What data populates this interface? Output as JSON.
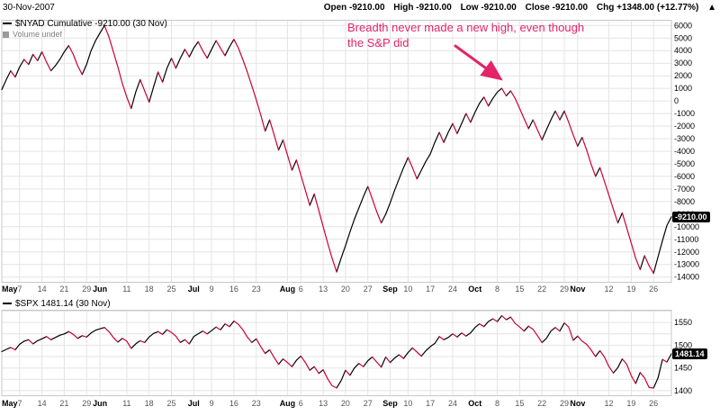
{
  "header": {
    "date": "30-Nov-2007",
    "fields": [
      {
        "label": "Open",
        "value": "-9210.00"
      },
      {
        "label": "High",
        "value": "-9210.00"
      },
      {
        "label": "Low",
        "value": "-9210.00"
      },
      {
        "label": "Close",
        "value": "-9210.00"
      },
      {
        "label": "Chg",
        "value": "+1348.00 (+12.77%)"
      }
    ],
    "direction_icon": "▲"
  },
  "annotation": {
    "line1": "Breadth never made a new high, even though",
    "line2": "the S&P did",
    "color": "#e32468"
  },
  "x_ticks": [
    {
      "i": 0,
      "t": "May",
      "m": true
    },
    {
      "i": 4,
      "t": "7"
    },
    {
      "i": 9,
      "t": "14"
    },
    {
      "i": 14,
      "t": "21"
    },
    {
      "i": 19,
      "t": "29"
    },
    {
      "i": 22,
      "t": "Jun",
      "m": true
    },
    {
      "i": 28,
      "t": "11"
    },
    {
      "i": 33,
      "t": "18"
    },
    {
      "i": 38,
      "t": "25"
    },
    {
      "i": 43,
      "t": "Jul",
      "m": true
    },
    {
      "i": 47,
      "t": "9"
    },
    {
      "i": 52,
      "t": "16"
    },
    {
      "i": 57,
      "t": "23"
    },
    {
      "i": 64,
      "t": "Aug",
      "m": true
    },
    {
      "i": 67,
      "t": "6"
    },
    {
      "i": 72,
      "t": "13"
    },
    {
      "i": 77,
      "t": "20"
    },
    {
      "i": 82,
      "t": "27"
    },
    {
      "i": 87,
      "t": "Sep",
      "m": true
    },
    {
      "i": 91,
      "t": "10"
    },
    {
      "i": 96,
      "t": "17"
    },
    {
      "i": 101,
      "t": "24"
    },
    {
      "i": 106,
      "t": "Oct",
      "m": true
    },
    {
      "i": 111,
      "t": "8"
    },
    {
      "i": 116,
      "t": "15"
    },
    {
      "i": 121,
      "t": "22"
    },
    {
      "i": 126,
      "t": "29"
    },
    {
      "i": 129,
      "t": "Nov",
      "m": true
    },
    {
      "i": 136,
      "t": "12"
    },
    {
      "i": 141,
      "t": "19"
    },
    {
      "i": 146,
      "t": "26"
    }
  ],
  "chart_data": [
    {
      "type": "line",
      "name": "$NYAD Cumulative",
      "legend": "$NYAD Cumulative -9210.00 (30 Nov)",
      "volume_legend": "Volume undef",
      "last_label": "-9210.00",
      "last_value": -9210,
      "ylim": [
        -14450,
        6450
      ],
      "grid": {
        "min": -14000,
        "max": 6000,
        "step": 1000
      },
      "labels": {
        "min": -14000,
        "max": 6000,
        "step": 1000
      },
      "up_color": "#000000",
      "down_color": "#cc0033",
      "x_axis_note": "weekly ticks May-Nov 2007, values are trading days",
      "values": [
        900,
        1700,
        2400,
        1900,
        2700,
        3300,
        2900,
        3700,
        3200,
        3900,
        3100,
        2400,
        2800,
        3300,
        3900,
        4400,
        3700,
        2800,
        2100,
        2900,
        4000,
        4800,
        5400,
        6000,
        5100,
        3900,
        2700,
        1400,
        300,
        -600,
        700,
        1700,
        800,
        -100,
        1100,
        2300,
        1500,
        2600,
        3400,
        2600,
        3400,
        4100,
        3500,
        4200,
        4700,
        4000,
        3400,
        4100,
        4800,
        4200,
        3600,
        4300,
        4900,
        4200,
        3300,
        2300,
        1200,
        100,
        -1100,
        -2400,
        -1500,
        -2700,
        -3900,
        -3100,
        -4300,
        -5500,
        -4700,
        -5900,
        -7100,
        -8300,
        -7400,
        -8700,
        -10000,
        -11300,
        -12500,
        -13600,
        -12500,
        -11500,
        -10400,
        -9400,
        -8500,
        -7600,
        -6800,
        -7800,
        -8800,
        -9700,
        -9000,
        -8100,
        -7100,
        -6200,
        -5300,
        -4500,
        -5300,
        -6200,
        -5500,
        -4800,
        -4200,
        -3300,
        -2500,
        -3300,
        -2500,
        -1800,
        -2600,
        -1800,
        -1000,
        -1700,
        -900,
        -200,
        300,
        -400,
        200,
        700,
        1000,
        400,
        800,
        200,
        -600,
        -1400,
        -2200,
        -1500,
        -2300,
        -3100,
        -2300,
        -1500,
        -800,
        -1500,
        -800,
        -1700,
        -2700,
        -3600,
        -2900,
        -3900,
        -5000,
        -6000,
        -5300,
        -6400,
        -7500,
        -8600,
        -9700,
        -8900,
        -10100,
        -11300,
        -12500,
        -13400,
        -12300,
        -13100,
        -13700,
        -12400,
        -11100,
        -9900,
        -9210
      ]
    },
    {
      "type": "line",
      "name": "$SPX",
      "legend": "$SPX 1481.14 (30 Nov)",
      "last_label": "1481.14",
      "last_value": 1481.14,
      "ylim": [
        1388,
        1578
      ],
      "grid": {
        "min": 1400,
        "max": 1575,
        "step": 25
      },
      "labels": {
        "min": 1400,
        "max": 1550,
        "step": 50
      },
      "up_color": "#000000",
      "down_color": "#cc0033",
      "values": [
        1486,
        1491,
        1495,
        1490,
        1502,
        1509,
        1512,
        1503,
        1510,
        1514,
        1519,
        1512,
        1517,
        1522,
        1525,
        1530,
        1524,
        1515,
        1521,
        1518,
        1527,
        1533,
        1536,
        1539,
        1530,
        1517,
        1507,
        1515,
        1509,
        1493,
        1503,
        1510,
        1506,
        1518,
        1526,
        1530,
        1524,
        1534,
        1528,
        1520,
        1506,
        1512,
        1503,
        1519,
        1525,
        1531,
        1525,
        1532,
        1540,
        1534,
        1547,
        1541,
        1553,
        1546,
        1534,
        1518,
        1506,
        1514,
        1497,
        1482,
        1490,
        1473,
        1458,
        1470,
        1462,
        1453,
        1467,
        1476,
        1462,
        1445,
        1453,
        1438,
        1446,
        1426,
        1411,
        1406,
        1422,
        1445,
        1434,
        1450,
        1460,
        1453,
        1466,
        1474,
        1463,
        1452,
        1474,
        1462,
        1472,
        1479,
        1471,
        1484,
        1494,
        1485,
        1476,
        1488,
        1497,
        1504,
        1519,
        1512,
        1517,
        1525,
        1518,
        1527,
        1520,
        1527,
        1539,
        1547,
        1541,
        1552,
        1558,
        1552,
        1565,
        1556,
        1562,
        1548,
        1540,
        1531,
        1542,
        1535,
        1521,
        1506,
        1515,
        1531,
        1539,
        1531,
        1549,
        1540,
        1511,
        1520,
        1509,
        1502,
        1490,
        1475,
        1488,
        1474,
        1453,
        1439,
        1451,
        1470,
        1458,
        1433,
        1416,
        1440,
        1428,
        1407,
        1406,
        1428,
        1469,
        1463,
        1481.14
      ]
    }
  ]
}
